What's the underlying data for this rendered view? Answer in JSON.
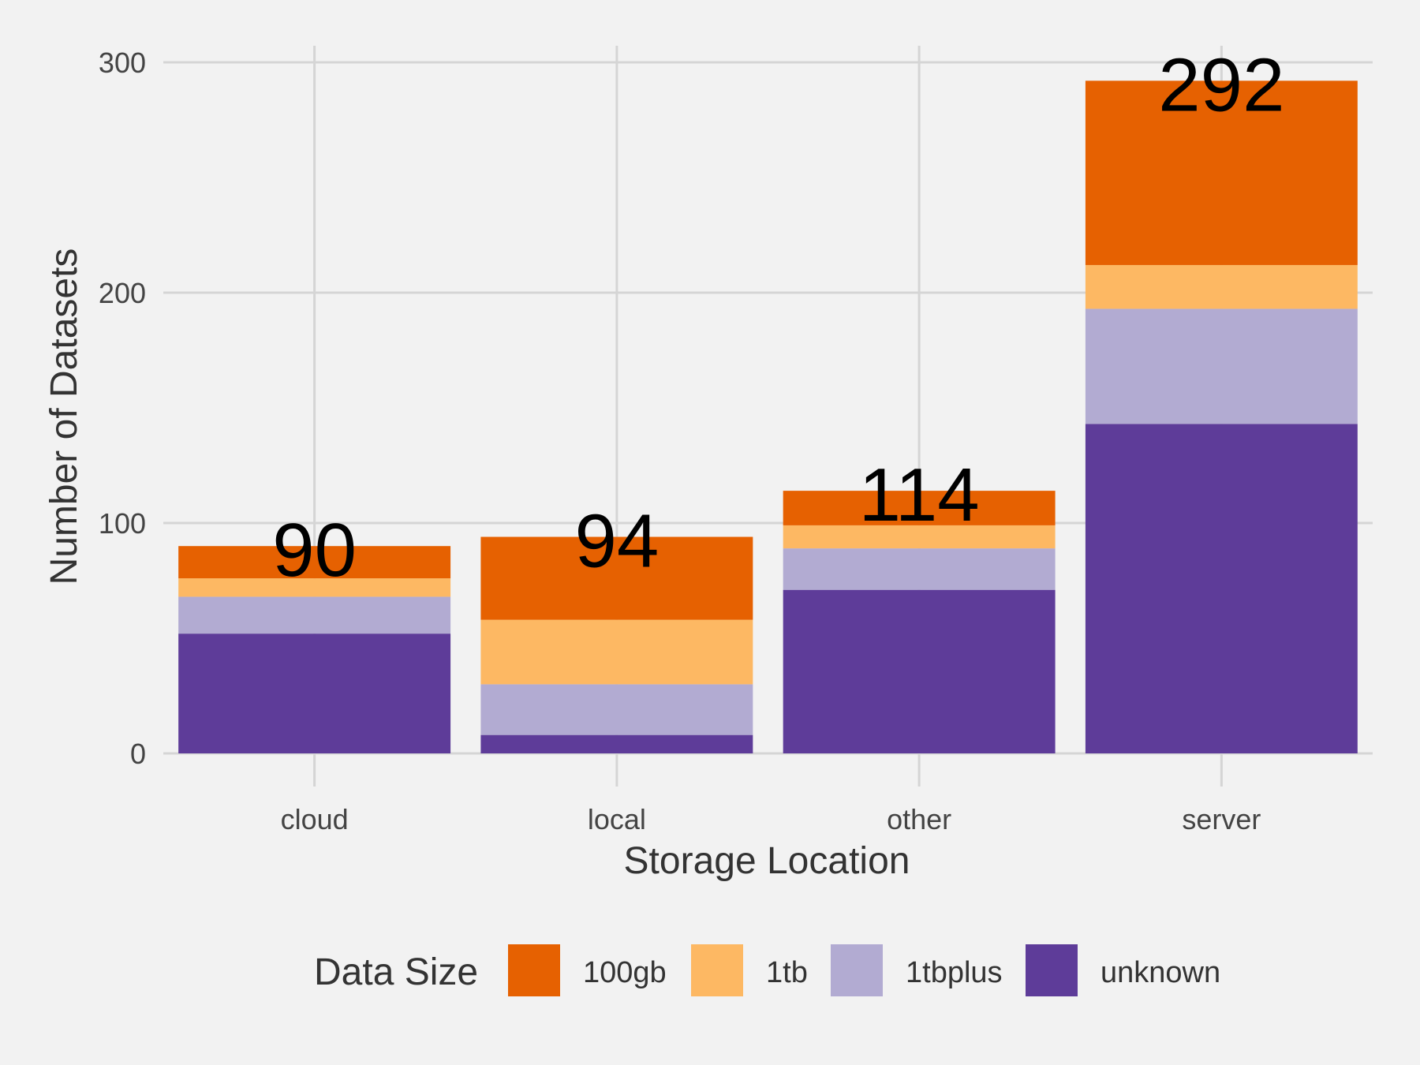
{
  "chart_data": {
    "type": "bar",
    "stacked": true,
    "categories": [
      "cloud",
      "local",
      "other",
      "server"
    ],
    "series": [
      {
        "name": "unknown",
        "color": "#5e3c99",
        "values": [
          52,
          8,
          71,
          143
        ]
      },
      {
        "name": "1tbplus",
        "color": "#b2abd2",
        "values": [
          16,
          22,
          18,
          50
        ]
      },
      {
        "name": "1tb",
        "color": "#fdb863",
        "values": [
          8,
          28,
          10,
          19
        ]
      },
      {
        "name": "100gb",
        "color": "#e66101",
        "values": [
          14,
          36,
          15,
          80
        ]
      }
    ],
    "totals": [
      90,
      94,
      114,
      292
    ],
    "xlabel": "Storage Location",
    "ylabel": "Number of Datasets",
    "ylim": [
      0,
      300
    ],
    "yticks": [
      0,
      100,
      200,
      300
    ],
    "grid": true,
    "legend": {
      "title": "Data Size",
      "position": "bottom",
      "entries": [
        "100gb",
        "1tb",
        "1tbplus",
        "unknown"
      ]
    }
  }
}
